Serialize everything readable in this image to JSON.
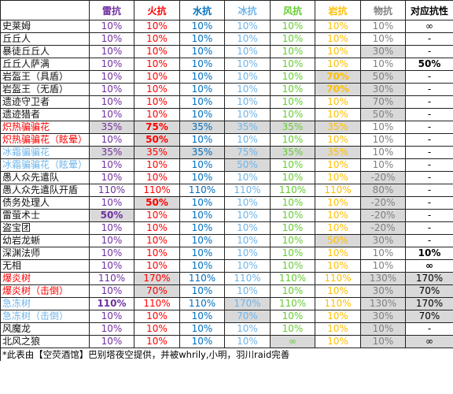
{
  "columns": [
    "",
    "雷抗",
    "火抗",
    "水抗",
    "冰抗",
    "风抗",
    "岩抗",
    "物抗",
    "对应抗性"
  ],
  "column_colors": [
    "#000000",
    "#7030a0",
    "#ff0000",
    "#0070c0",
    "#6fb4e8",
    "#66cc33",
    "#ffbf00",
    "#808080",
    "#000000"
  ],
  "colors": {
    "name_red": "#ff0000",
    "name_ice": "#6fb4e8",
    "shade": "#d9d9d9"
  },
  "rows": [
    {
      "name": "史莱姆",
      "values": [
        "10%",
        "10%",
        "10%",
        "10%",
        "10%",
        "10%",
        "10%",
        "∞"
      ]
    },
    {
      "name": "丘丘人",
      "values": [
        "10%",
        "10%",
        "10%",
        "10%",
        "10%",
        "10%",
        "10%",
        "-"
      ]
    },
    {
      "name": "暴徒丘丘人",
      "values": [
        "10%",
        "10%",
        "10%",
        "10%",
        "10%",
        "10%",
        "30%",
        "-"
      ],
      "shade": [
        6
      ]
    },
    {
      "name": "丘丘人萨满",
      "values": [
        "10%",
        "10%",
        "10%",
        "10%",
        "10%",
        "10%",
        "10%",
        "50%"
      ],
      "bold": [
        7
      ]
    },
    {
      "name": "岩盔王（具盾）",
      "values": [
        "10%",
        "10%",
        "10%",
        "10%",
        "10%",
        "70%",
        "50%",
        "-"
      ],
      "shade": [
        5,
        6
      ],
      "bold": [
        5
      ]
    },
    {
      "name": "岩盔王（无盾）",
      "values": [
        "10%",
        "10%",
        "10%",
        "10%",
        "10%",
        "70%",
        "30%",
        "-"
      ],
      "shade": [
        5,
        6
      ],
      "bold": [
        5
      ]
    },
    {
      "name": "遗迹守卫者",
      "values": [
        "10%",
        "10%",
        "10%",
        "10%",
        "10%",
        "10%",
        "70%",
        "-"
      ],
      "shade": [
        6
      ]
    },
    {
      "name": "遗迹猎者",
      "values": [
        "10%",
        "10%",
        "10%",
        "10%",
        "10%",
        "10%",
        "50%",
        "-"
      ],
      "shade": [
        6
      ]
    },
    {
      "name": "炽热骗骗花",
      "name_color": "#ff0000",
      "values": [
        "35%",
        "75%",
        "35%",
        "35%",
        "35%",
        "35%",
        "10%",
        "-"
      ],
      "shade": [
        0,
        1,
        2,
        3,
        4,
        5
      ],
      "bold": [
        1
      ]
    },
    {
      "name": "炽热骗骗花（眩晕）",
      "name_color": "#ff0000",
      "values": [
        "10%",
        "50%",
        "10%",
        "10%",
        "10%",
        "10%",
        "10%",
        "-"
      ],
      "shade": [
        1
      ],
      "bold": [
        1
      ]
    },
    {
      "name": "冰霜骗骗花",
      "name_color": "#6fb4e8",
      "values": [
        "35%",
        "35%",
        "35%",
        "75%",
        "35%",
        "35%",
        "10%",
        "-"
      ],
      "shade": [
        0,
        1,
        2,
        3,
        4,
        5
      ]
    },
    {
      "name": "冰霜骗骗花（眩晕）",
      "name_color": "#6fb4e8",
      "values": [
        "10%",
        "10%",
        "10%",
        "50%",
        "10%",
        "10%",
        "10%",
        "-"
      ],
      "shade": [
        3
      ]
    },
    {
      "name": "愚人众先遣队",
      "values": [
        "10%",
        "10%",
        "10%",
        "10%",
        "10%",
        "10%",
        "-20%",
        "-"
      ],
      "shade": [
        6
      ]
    },
    {
      "name": "愚人众先遣队开盾",
      "values": [
        "110%",
        "110%",
        "110%",
        "110%",
        "110%",
        "110%",
        "80%",
        "-"
      ],
      "shade": [
        6
      ]
    },
    {
      "name": "债务处理人",
      "values": [
        "10%",
        "50%",
        "10%",
        "10%",
        "10%",
        "10%",
        "-20%",
        "-"
      ],
      "shade": [
        1,
        6
      ],
      "bold": [
        1
      ]
    },
    {
      "name": "雷萤术士",
      "values": [
        "50%",
        "10%",
        "10%",
        "10%",
        "10%",
        "10%",
        "-20%",
        "-"
      ],
      "shade": [
        0,
        6
      ],
      "bold": [
        0
      ]
    },
    {
      "name": "盗宝团",
      "values": [
        "10%",
        "10%",
        "10%",
        "10%",
        "10%",
        "10%",
        "-20%",
        "-"
      ],
      "shade": [
        6
      ]
    },
    {
      "name": "幼岩龙蜥",
      "values": [
        "10%",
        "10%",
        "10%",
        "10%",
        "10%",
        "50%",
        "30%",
        "-"
      ],
      "shade": [
        5,
        6
      ]
    },
    {
      "name": "深渊法师",
      "values": [
        "10%",
        "10%",
        "10%",
        "10%",
        "10%",
        "10%",
        "10%",
        "10%"
      ],
      "bold": [
        7
      ]
    },
    {
      "name": "无相",
      "values": [
        "10%",
        "10%",
        "10%",
        "10%",
        "10%",
        "10%",
        "10%",
        "∞"
      ],
      "bold": [
        7
      ]
    },
    {
      "name": "爆炎树",
      "name_color": "#ff0000",
      "values": [
        "110%",
        "170%",
        "110%",
        "110%",
        "110%",
        "110%",
        "130%",
        "170%"
      ],
      "shade": [
        1,
        6,
        7
      ]
    },
    {
      "name": "爆炎树（击倒）",
      "name_color": "#ff0000",
      "values": [
        "10%",
        "70%",
        "10%",
        "10%",
        "10%",
        "10%",
        "30%",
        "70%"
      ],
      "shade": [
        1,
        6,
        7
      ]
    },
    {
      "name": "急冻树",
      "name_color": "#6fb4e8",
      "values": [
        "110%",
        "110%",
        "110%",
        "170%",
        "110%",
        "110%",
        "130%",
        "170%"
      ],
      "shade": [
        3,
        6,
        7
      ],
      "bold": [
        0
      ]
    },
    {
      "name": "急冻树（击倒）",
      "name_color": "#6fb4e8",
      "values": [
        "10%",
        "10%",
        "10%",
        "70%",
        "10%",
        "10%",
        "30%",
        "70%"
      ],
      "shade": [
        3,
        6,
        7
      ]
    },
    {
      "name": "风魔龙",
      "values": [
        "10%",
        "10%",
        "10%",
        "10%",
        "10%",
        "10%",
        "10%",
        "-"
      ],
      "shade": [
        6
      ]
    },
    {
      "name": "北风之狼",
      "values": [
        "10%",
        "10%",
        "10%",
        "10%",
        "∞",
        "10%",
        "10%",
        "∞"
      ],
      "shade": [
        4,
        6,
        7
      ]
    }
  ],
  "footer": "*此表由【空荧酒馆】巴别塔夜空提供，并被whrily,小明，羽川raid完善"
}
